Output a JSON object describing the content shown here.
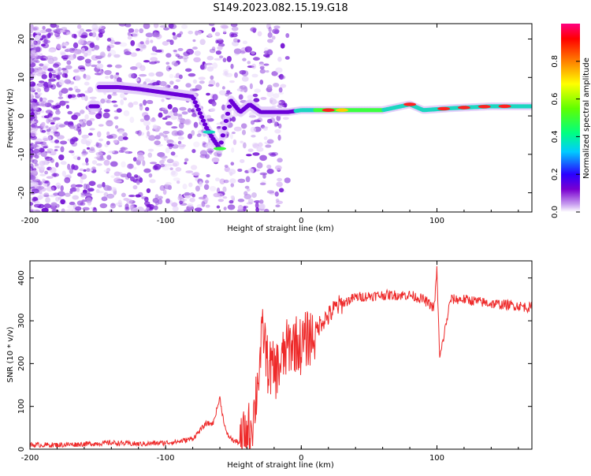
{
  "figure": {
    "title": "S149.2023.082.15.19.G18"
  },
  "colors": {
    "snr_line": "#ee2a2a",
    "axis": "#000000",
    "background": "#ffffff"
  },
  "chart_data": [
    {
      "type": "heatmap",
      "title": "",
      "xlabel": "Height of straight line (km)",
      "ylabel": "Frequency (Hz)",
      "xlim": [
        -200,
        170
      ],
      "ylim": [
        -25,
        24
      ],
      "x_ticks": [
        -200,
        -100,
        0,
        100
      ],
      "y_ticks": [
        -20,
        -10,
        0,
        10,
        20
      ],
      "colorbar": {
        "label": "Normalized spectral amplitude",
        "range": [
          0,
          1
        ],
        "ticks": [
          0.0,
          0.2,
          0.4,
          0.6,
          0.8
        ],
        "colormap": [
          "#ffffff",
          "#c9a0f0",
          "#7a00d0",
          "#2a00ff",
          "#00ccff",
          "#00ff80",
          "#60ff00",
          "#ffff00",
          "#ff8000",
          "#ff0000",
          "#ff0080"
        ]
      },
      "ridge": [
        {
          "x": -150,
          "y": 7.5
        },
        {
          "x": -135,
          "y": 7.5
        },
        {
          "x": -120,
          "y": 7.0
        },
        {
          "x": -100,
          "y": 6.0
        },
        {
          "x": -90,
          "y": 5.5
        },
        {
          "x": -80,
          "y": 5.0
        },
        {
          "x": -75,
          "y": 1.0
        },
        {
          "x": -70,
          "y": -3.0
        },
        {
          "x": -65,
          "y": -6.0
        },
        {
          "x": -60,
          "y": -8.5
        },
        {
          "x": -52,
          "y": 4.0
        },
        {
          "x": -45,
          "y": 1.0
        },
        {
          "x": -38,
          "y": 3.0
        },
        {
          "x": -30,
          "y": 1.0
        },
        {
          "x": -20,
          "y": 1.0
        },
        {
          "x": -10,
          "y": 1.0
        },
        {
          "x": 0,
          "y": 1.5
        },
        {
          "x": 20,
          "y": 1.5
        },
        {
          "x": 40,
          "y": 1.5
        },
        {
          "x": 60,
          "y": 1.5
        },
        {
          "x": 80,
          "y": 3.0
        },
        {
          "x": 90,
          "y": 1.5
        },
        {
          "x": 110,
          "y": 2.0
        },
        {
          "x": 140,
          "y": 2.5
        },
        {
          "x": 170,
          "y": 2.5
        }
      ]
    },
    {
      "type": "line",
      "title": "",
      "xlabel": "Height of straight line (km)",
      "ylabel": "SNR (10 * v/v)",
      "xlim": [
        -200,
        170
      ],
      "ylim": [
        0,
        440
      ],
      "x_ticks": [
        -200,
        -100,
        0,
        100
      ],
      "y_ticks": [
        0,
        100,
        200,
        300,
        400
      ],
      "series": [
        {
          "x": [
            -200,
            -180,
            -160,
            -140,
            -120,
            -100,
            -90,
            -80,
            -70,
            -65,
            -60,
            -58,
            -55,
            -50,
            -45,
            -40,
            -35,
            -30,
            -28,
            -25,
            -20,
            -15,
            -10,
            -5,
            0,
            5,
            10,
            15,
            20,
            25,
            30,
            40,
            60,
            80,
            90,
            98,
            100,
            102,
            110,
            120,
            140,
            160,
            170
          ],
          "y": [
            10,
            10,
            12,
            15,
            12,
            15,
            18,
            25,
            60,
            60,
            120,
            80,
            35,
            20,
            15,
            30,
            80,
            220,
            280,
            200,
            180,
            200,
            240,
            250,
            240,
            260,
            270,
            300,
            310,
            330,
            340,
            355,
            360,
            360,
            350,
            330,
            420,
            210,
            350,
            350,
            340,
            335,
            330
          ]
        }
      ]
    }
  ]
}
